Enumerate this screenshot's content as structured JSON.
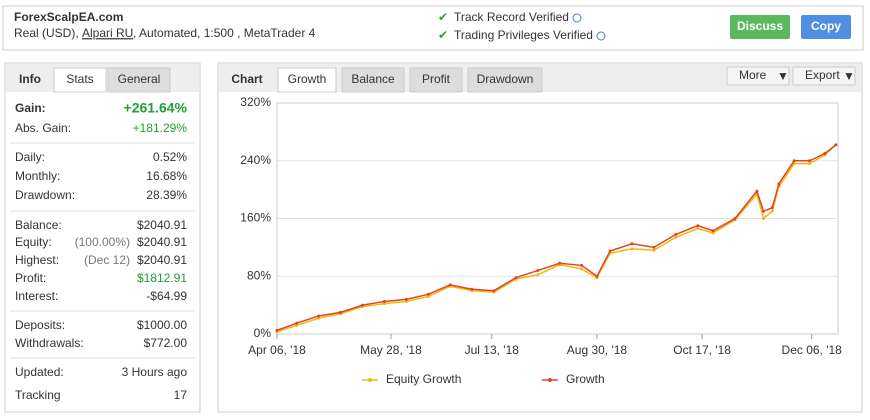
{
  "header": {
    "site": "ForexScalpEA.com",
    "account_prefix": "Real (USD),",
    "broker": "Alpari RU",
    "account_suffix": ", Automated, 1:500 , MetaTrader 4",
    "verified": [
      "Track Record Verified",
      "Trading Privileges Verified"
    ],
    "buttons": [
      "Discuss",
      "Copy"
    ]
  },
  "info_panel": {
    "tabs": [
      "Info",
      "Stats",
      "General"
    ],
    "groups": [
      [
        {
          "label": "Gain:",
          "value": "+261.64%",
          "color": "#1f9e3a",
          "bold": true
        },
        {
          "label": "Abs. Gain:",
          "value": "+181.29%",
          "color": "#1f9e3a"
        }
      ],
      [
        {
          "label": "Daily:",
          "value": "0.52%"
        },
        {
          "label": "Monthly:",
          "value": "16.68%"
        },
        {
          "label": "Drawdown:",
          "value": "28.39%"
        }
      ],
      [
        {
          "label": "Balance:",
          "value": "$2040.91"
        },
        {
          "label": "Equity:",
          "note": "(100.00%)",
          "value": "$2040.91"
        },
        {
          "label": "Highest:",
          "note": "(Dec 12)",
          "value": "$2040.91"
        },
        {
          "label": "Profit:",
          "value": "$1812.91",
          "color": "#1f9e3a"
        },
        {
          "label": "Interest:",
          "value": "-$64.99"
        }
      ],
      [
        {
          "label": "Deposits:",
          "value": "$1000.00"
        },
        {
          "label": "Withdrawals:",
          "value": "$772.00"
        }
      ],
      [
        {
          "label": "Updated:",
          "value": "3 Hours ago"
        },
        {
          "label": "Tracking",
          "value": "17"
        }
      ]
    ]
  },
  "chart_panel": {
    "tabs": [
      "Chart",
      "Growth",
      "Balance",
      "Profit",
      "Drawdown"
    ],
    "controls": [
      "More",
      "Export"
    ]
  },
  "chart_data": {
    "type": "line",
    "x": [
      "2018-04-06",
      "2018-04-15",
      "2018-04-25",
      "2018-05-05",
      "2018-05-15",
      "2018-05-25",
      "2018-06-04",
      "2018-06-14",
      "2018-06-24",
      "2018-07-04",
      "2018-07-14",
      "2018-07-24",
      "2018-08-03",
      "2018-08-13",
      "2018-08-23",
      "2018-08-30",
      "2018-09-05",
      "2018-09-15",
      "2018-09-25",
      "2018-10-05",
      "2018-10-15",
      "2018-10-22",
      "2018-11-01",
      "2018-11-11",
      "2018-11-14",
      "2018-11-18",
      "2018-11-21",
      "2018-11-28",
      "2018-12-05",
      "2018-12-12",
      "2018-12-17"
    ],
    "series": [
      {
        "name": "Equity Growth",
        "color": "#f5b800",
        "values": [
          3,
          12,
          22,
          28,
          38,
          42,
          45,
          52,
          66,
          60,
          58,
          76,
          82,
          96,
          90,
          78,
          112,
          118,
          116,
          134,
          146,
          140,
          158,
          194,
          160,
          170,
          204,
          236,
          236,
          248,
          262
        ]
      },
      {
        "name": "Growth",
        "color": "#e0452c",
        "values": [
          5,
          15,
          25,
          30,
          40,
          45,
          48,
          55,
          68,
          62,
          60,
          78,
          88,
          98,
          95,
          80,
          115,
          125,
          120,
          138,
          150,
          143,
          160,
          198,
          170,
          175,
          208,
          240,
          240,
          250,
          262
        ]
      }
    ],
    "xlim": [
      "2018-04-06",
      "2018-12-18"
    ],
    "xticks": [
      {
        "value": "2018-04-06",
        "label": "Apr 06, '18"
      },
      {
        "value": "2018-05-28",
        "label": "May 28, '18"
      },
      {
        "value": "2018-07-13",
        "label": "Jul 13, '18"
      },
      {
        "value": "2018-08-30",
        "label": "Aug 30, '18"
      },
      {
        "value": "2018-10-17",
        "label": "Oct 17, '18"
      },
      {
        "value": "2018-12-06",
        "label": "Dec 06, '18"
      }
    ],
    "ylim": [
      0,
      320
    ],
    "yticks": [
      {
        "value": 0,
        "label": "0%"
      },
      {
        "value": 80,
        "label": "80%"
      },
      {
        "value": 160,
        "label": "160%"
      },
      {
        "value": 240,
        "label": "240%"
      },
      {
        "value": 320,
        "label": "320%"
      }
    ],
    "grid": true
  }
}
